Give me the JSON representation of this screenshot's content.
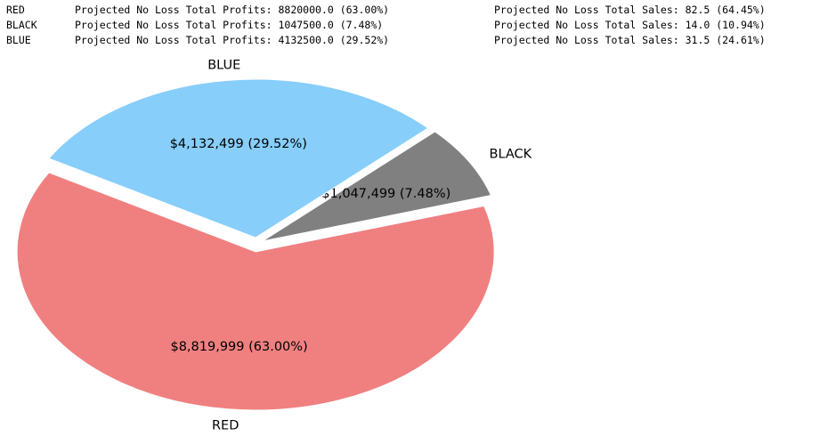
{
  "summary": {
    "rows": [
      {
        "name": "RED",
        "profits": "Projected No Loss Total Profits: 8820000.0 (63.00%)",
        "sales": "Projected No Loss Total Sales: 82.5 (64.45%)"
      },
      {
        "name": "BLACK",
        "profits": "Projected No Loss Total Profits: 1047500.0 (7.48%)",
        "sales": "Projected No Loss Total Sales: 14.0 (10.94%)"
      },
      {
        "name": "BLUE",
        "profits": "Projected No Loss Total Profits: 4132500.0 (29.52%)",
        "sales": "Projected No Loss Total Sales: 31.5 (24.61%)"
      }
    ]
  },
  "chart_data": {
    "type": "pie",
    "title": "",
    "slices": [
      {
        "label": "RED",
        "value": 8819999,
        "value_label": "$8,819,999  (63.00%)",
        "color": "#f08080",
        "exploded": true
      },
      {
        "label": "BLACK",
        "value": 1047499,
        "value_label": "$1,047,499  (7.48%)",
        "color": "#808080",
        "exploded": true
      },
      {
        "label": "BLUE",
        "value": 4132499,
        "value_label": "$4,132,499  (29.52%)",
        "color": "#87cefa",
        "exploded": true
      }
    ],
    "start_angle_deg": 150,
    "direction": "counterclockwise"
  }
}
